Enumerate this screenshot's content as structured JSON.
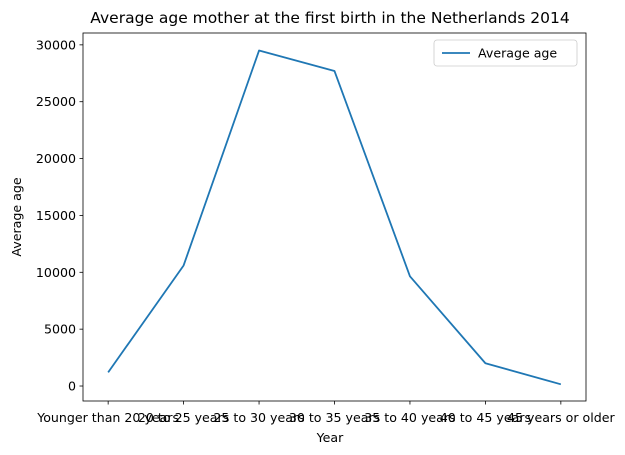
{
  "chart_data": {
    "type": "line",
    "title": "Average age mother at the first birth in the Netherlands 2014",
    "xlabel": "Year",
    "ylabel": "Average age",
    "categories": [
      "Younger than 20 years",
      "20 to 25 years",
      "25 to 30 years",
      "30 to 35 years",
      "35 to 40 years",
      "40 to 45 years",
      "45 years or older"
    ],
    "series": [
      {
        "name": "Average age",
        "values": [
          1200,
          10600,
          29500,
          27700,
          9650,
          2000,
          150
        ],
        "color": "#1f77b4"
      }
    ],
    "yticks": [
      0,
      5000,
      10000,
      15000,
      20000,
      25000,
      30000
    ],
    "ylim": [
      -1317.5,
      31042.5
    ],
    "grid": false,
    "legend_position": "top-right"
  }
}
